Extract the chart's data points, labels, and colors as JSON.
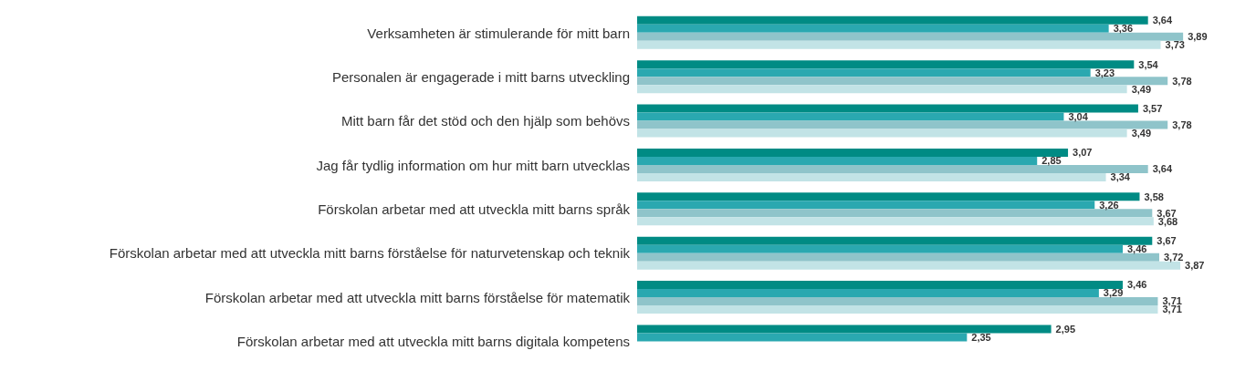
{
  "chart_data": {
    "type": "bar",
    "orientation": "horizontal",
    "grid": false,
    "legend": false,
    "categories": [
      "Verksamheten är stimulerande för mitt barn",
      "Personalen är engagerade i mitt barns utveckling",
      "Mitt barn får det stöd och den hjälp som behövs",
      "Jag får tydlig information om hur mitt barn utvecklas",
      "Förskolan arbetar med att utveckla mitt barns språk",
      "Förskolan arbetar med att utveckla mitt barns förståelse för naturvetenskap och teknik",
      "Förskolan arbetar med att utveckla mitt barns förståelse för matematik",
      "Förskolan arbetar med att utveckla mitt barns digitala kompetens"
    ],
    "series": [
      {
        "color": "#008b84",
        "values": [
          3.64,
          3.54,
          3.57,
          3.07,
          3.58,
          3.67,
          3.46,
          2.95
        ],
        "value_labels": [
          "3,64",
          "3,54",
          "3,57",
          "3,07",
          "3,58",
          "3,67",
          "3,46",
          "2,95"
        ]
      },
      {
        "color": "#2aa8b0",
        "values": [
          3.36,
          3.23,
          3.04,
          2.85,
          3.26,
          3.46,
          3.29,
          2.35
        ],
        "value_labels": [
          "3,36",
          "3,23",
          "3,04",
          "2,85",
          "3,26",
          "3,46",
          "3,29",
          "2,35"
        ]
      },
      {
        "color": "#8fc4ca",
        "values": [
          3.89,
          3.78,
          3.78,
          3.64,
          3.67,
          3.72,
          3.71,
          null
        ],
        "value_labels": [
          "3,89",
          "3,78",
          "3,78",
          "3,64",
          "3,67",
          "3,72",
          "3,71",
          null
        ]
      },
      {
        "color": "#c2e3e6",
        "values": [
          3.73,
          3.49,
          3.49,
          3.34,
          3.68,
          3.87,
          3.71,
          null
        ],
        "value_labels": [
          "3,73",
          "3,49",
          "3,49",
          "3,34",
          "3,68",
          "3,87",
          "3,71",
          null
        ]
      }
    ]
  }
}
